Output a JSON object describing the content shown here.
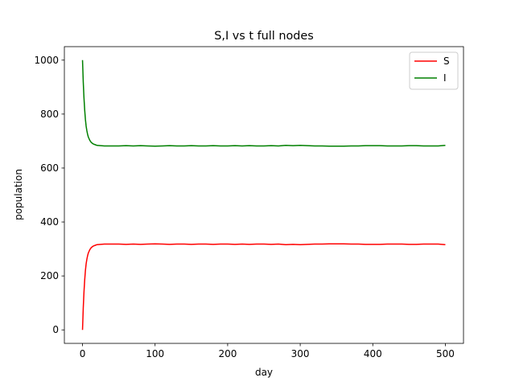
{
  "chart_data": {
    "type": "line",
    "title": "S,I vs t full nodes",
    "xlabel": "day",
    "ylabel": "population",
    "xlim": [
      -25,
      525
    ],
    "ylim": [
      -50,
      1050
    ],
    "xticks": [
      0,
      100,
      200,
      300,
      400,
      500
    ],
    "yticks": [
      0,
      200,
      400,
      600,
      800,
      1000
    ],
    "grid": false,
    "legend_position": "top-right",
    "series": [
      {
        "name": "S",
        "color": "#ff0000",
        "x": [
          0,
          1,
          2,
          3,
          4,
          5,
          6,
          7,
          8,
          10,
          12,
          15,
          18,
          20,
          25,
          30,
          40,
          50,
          60,
          70,
          80,
          90,
          100,
          110,
          120,
          130,
          140,
          150,
          160,
          170,
          180,
          190,
          200,
          210,
          220,
          230,
          240,
          250,
          260,
          270,
          280,
          290,
          300,
          310,
          320,
          330,
          340,
          350,
          360,
          370,
          380,
          390,
          400,
          410,
          420,
          430,
          440,
          450,
          460,
          470,
          480,
          490,
          500
        ],
        "y": [
          0,
          80,
          140,
          185,
          220,
          245,
          262,
          275,
          285,
          297,
          305,
          311,
          314,
          316,
          317,
          318,
          318,
          318,
          317,
          318,
          317,
          318,
          319,
          318,
          317,
          318,
          318,
          317,
          318,
          318,
          317,
          318,
          318,
          317,
          318,
          317,
          318,
          318,
          317,
          318,
          316,
          317,
          316,
          317,
          318,
          318,
          319,
          319,
          319,
          318,
          318,
          317,
          317,
          317,
          318,
          318,
          318,
          317,
          317,
          318,
          318,
          318,
          316
        ]
      },
      {
        "name": "I",
        "color": "#008000",
        "x": [
          0,
          1,
          2,
          3,
          4,
          5,
          6,
          7,
          8,
          10,
          12,
          15,
          18,
          20,
          25,
          30,
          40,
          50,
          60,
          70,
          80,
          90,
          100,
          110,
          120,
          130,
          140,
          150,
          160,
          170,
          180,
          190,
          200,
          210,
          220,
          230,
          240,
          250,
          260,
          270,
          280,
          290,
          300,
          310,
          320,
          330,
          340,
          350,
          360,
          370,
          380,
          390,
          400,
          410,
          420,
          430,
          440,
          450,
          460,
          470,
          480,
          490,
          500
        ],
        "y": [
          1000,
          920,
          860,
          815,
          780,
          755,
          738,
          725,
          715,
          703,
          695,
          689,
          686,
          684,
          683,
          682,
          682,
          682,
          683,
          682,
          683,
          682,
          681,
          682,
          683,
          682,
          682,
          683,
          682,
          682,
          683,
          682,
          682,
          683,
          682,
          683,
          682,
          682,
          683,
          682,
          684,
          683,
          684,
          683,
          682,
          682,
          681,
          681,
          681,
          682,
          682,
          683,
          683,
          683,
          682,
          682,
          682,
          683,
          683,
          682,
          682,
          682,
          684
        ]
      }
    ]
  }
}
